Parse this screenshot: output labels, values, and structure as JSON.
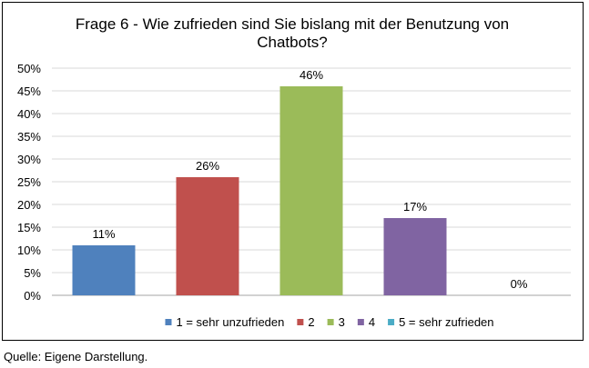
{
  "chart_data": {
    "type": "bar",
    "title_lines": [
      "Frage 6 - Wie zufrieden sind Sie bislang mit der Benutzung von",
      "Chatbots?"
    ],
    "categories": [
      "1 = sehr unzufrieden",
      "2",
      "3",
      "4",
      "5 = sehr zufrieden"
    ],
    "values": [
      11,
      26,
      46,
      17,
      0
    ],
    "value_labels": [
      "11%",
      "26%",
      "46%",
      "17%",
      "0%"
    ],
    "colors": [
      "#4f81bd",
      "#c0504d",
      "#9bbb59",
      "#8064a2",
      "#4bacc6"
    ],
    "ylim": [
      0,
      50
    ],
    "yticks": [
      "0%",
      "5%",
      "10%",
      "15%",
      "20%",
      "25%",
      "30%",
      "35%",
      "40%",
      "45%",
      "50%"
    ],
    "grid": true,
    "legend_position": "bottom"
  },
  "source_note": "Quelle: Eigene Darstellung."
}
